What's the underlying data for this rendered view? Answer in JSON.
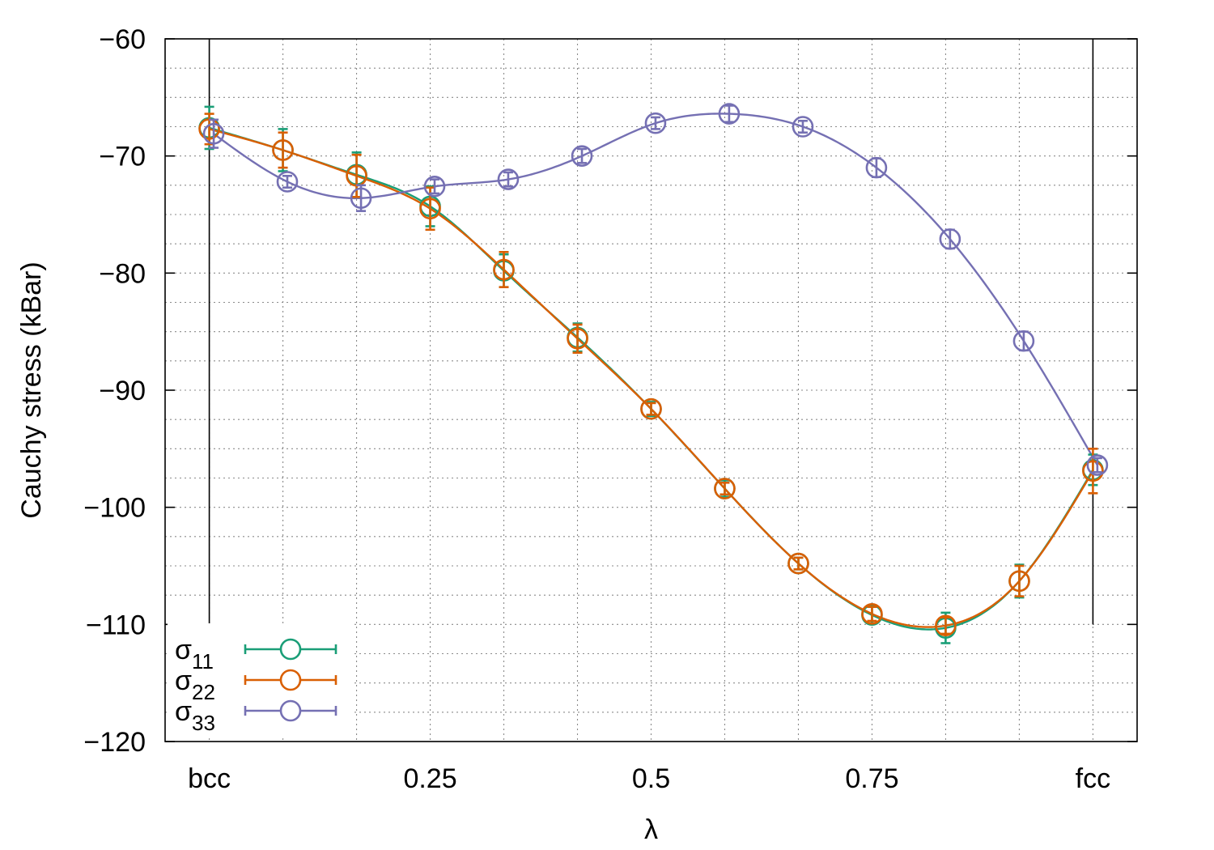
{
  "chart_data": {
    "type": "line",
    "xlabel": "λ",
    "ylabel": "Cauchy stress (kBar)",
    "xlim": [
      -0.05,
      1.05
    ],
    "ylim": [
      -120,
      -60
    ],
    "x_ticks": [
      {
        "value": 0,
        "label": "bcc"
      },
      {
        "value": 0.25,
        "label": "0.25"
      },
      {
        "value": 0.5,
        "label": "0.5"
      },
      {
        "value": 0.75,
        "label": "0.75"
      },
      {
        "value": 1,
        "label": "fcc"
      }
    ],
    "y_ticks": [
      {
        "value": -60,
        "label": "−60"
      },
      {
        "value": -70,
        "label": "−70"
      },
      {
        "value": -80,
        "label": "−80"
      },
      {
        "value": -90,
        "label": "−90"
      },
      {
        "value": -100,
        "label": "−100"
      },
      {
        "value": -110,
        "label": "−110"
      },
      {
        "value": -120,
        "label": "−120"
      }
    ],
    "grid": true,
    "legend_position": "bottom-left",
    "series": [
      {
        "name": "σ11",
        "symbol": "σ",
        "subscript": "11",
        "color": "#1a9e77",
        "x": [
          0,
          0.0833,
          0.1667,
          0.25,
          0.3333,
          0.4167,
          0.5,
          0.5833,
          0.6667,
          0.75,
          0.8333,
          0.9167,
          1.0
        ],
        "y": [
          -67.6,
          -69.5,
          -71.6,
          -74.3,
          -79.8,
          -85.5,
          -91.6,
          -98.4,
          -104.8,
          -109.2,
          -110.3,
          -106.3,
          -96.8
        ],
        "err": [
          1.8,
          1.8,
          1.9,
          1.7,
          1.4,
          1.2,
          0.6,
          0.7,
          0.5,
          0.7,
          1.3,
          1.4,
          1.3
        ]
      },
      {
        "name": "σ22",
        "symbol": "σ",
        "subscript": "22",
        "color": "#d95f02",
        "x": [
          0,
          0.0833,
          0.1667,
          0.25,
          0.3333,
          0.4167,
          0.5,
          0.5833,
          0.6667,
          0.75,
          0.8333,
          0.9167,
          1.0
        ],
        "y": [
          -67.7,
          -69.5,
          -71.7,
          -74.5,
          -79.7,
          -85.6,
          -91.6,
          -98.4,
          -104.8,
          -109.1,
          -110.1,
          -106.3,
          -96.9
        ],
        "err": [
          1.3,
          1.5,
          1.8,
          1.8,
          1.5,
          1.2,
          0.5,
          0.5,
          0.5,
          0.6,
          0.7,
          1.3,
          1.9
        ]
      },
      {
        "name": "σ33",
        "symbol": "σ",
        "subscript": "33",
        "color": "#7570b3",
        "x": [
          0.005,
          0.0883,
          0.1717,
          0.255,
          0.3383,
          0.4217,
          0.505,
          0.5883,
          0.6717,
          0.755,
          0.8383,
          0.9217,
          1.005
        ],
        "y": [
          -68.1,
          -72.2,
          -73.6,
          -72.6,
          -72.0,
          -70.0,
          -67.2,
          -66.4,
          -67.5,
          -71.0,
          -77.1,
          -85.8,
          -96.4
        ],
        "err": [
          1.2,
          0.5,
          1.1,
          0.6,
          0.6,
          0.6,
          0.5,
          0.7,
          0.5,
          0.8,
          0.8,
          0.8,
          0.6
        ]
      }
    ]
  }
}
